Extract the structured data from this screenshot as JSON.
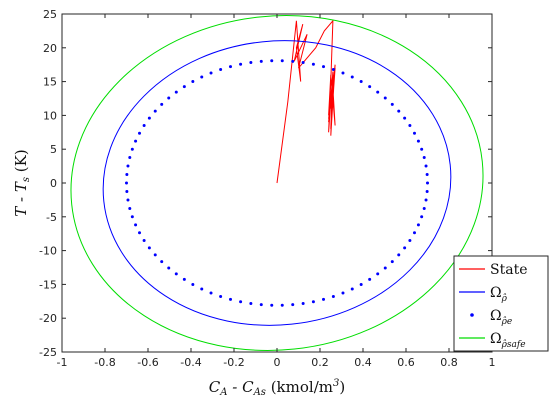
{
  "chart_data": {
    "type": "line",
    "xlabel_parts": [
      "C",
      "A",
      " - C",
      "As",
      " (kmol/m",
      "3",
      ")"
    ],
    "ylabel": "T - T",
    "ylabel_sub": "s",
    "ylabel_unit": " (K)",
    "xlim": [
      -1,
      1
    ],
    "ylim": [
      -25,
      25
    ],
    "xticks": [
      "-1",
      "-0.8",
      "-0.6",
      "-0.4",
      "-0.2",
      "0",
      "0.2",
      "0.4",
      "0.6",
      "0.8",
      "1"
    ],
    "yticks": [
      "25",
      "20",
      "15",
      "10",
      "5",
      "0",
      "-5",
      "-10",
      "-15",
      "-20",
      "-25"
    ],
    "legend_position": "bottom-right",
    "series": [
      {
        "name": "State",
        "style": "line",
        "color": "#ff0000",
        "x": [
          0.0,
          0.05,
          0.09,
          0.11,
          0.09,
          0.12,
          0.08,
          0.14,
          0.1,
          0.18,
          0.22,
          0.26,
          0.25,
          0.24,
          0.26,
          0.25,
          0.27,
          0.24,
          0.26,
          0.25,
          0.27,
          0.24,
          0.26,
          0.27,
          0.25,
          0.24,
          0.26,
          0.25
        ],
        "y": [
          0.0,
          12.0,
          24.0,
          15.0,
          20.0,
          23.5,
          18.0,
          22.0,
          17.0,
          20.0,
          22.5,
          24.0,
          15.0,
          7.5,
          16.5,
          8.0,
          17.0,
          9.0,
          16.0,
          7.0,
          17.5,
          9.5,
          14.0,
          8.5,
          16.0,
          10.0,
          15.0,
          11.0
        ]
      },
      {
        "name_main": "Ω",
        "name_sub": "ρ̂",
        "style": "ellipse-line",
        "color": "#0000ff",
        "center": [
          0.0,
          0.0
        ],
        "rx": 0.81,
        "ry": 21.0,
        "rotation_deg": 6
      },
      {
        "name_main": "Ω",
        "name_sub": "ρ̂e",
        "style": "ellipse-dots",
        "color": "#0000ff",
        "center": [
          0.0,
          0.0
        ],
        "rx": 0.7,
        "ry": 18.1,
        "rotation_deg": 0
      },
      {
        "name_main": "Ω",
        "name_sub": "ρ̂safe",
        "style": "ellipse-line",
        "color": "#00dd00",
        "center": [
          0.0,
          0.0
        ],
        "rx": 0.96,
        "ry": 24.7,
        "rotation_deg": 6
      }
    ]
  }
}
